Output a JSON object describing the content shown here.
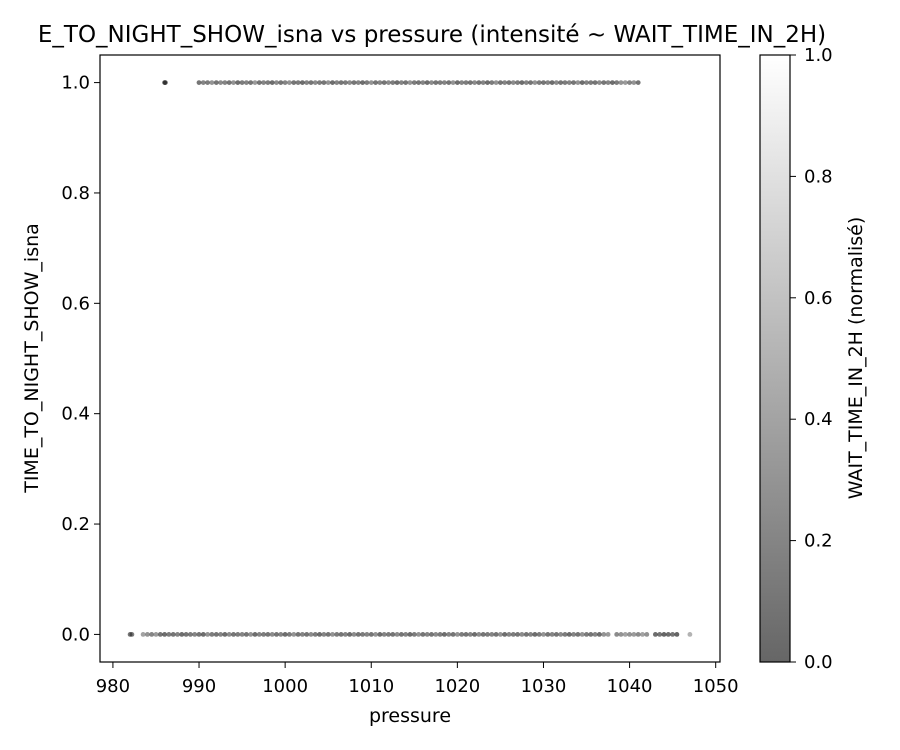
{
  "chart_data": {
    "type": "scatter",
    "title": "E_TO_NIGHT_SHOW_isna vs pressure (intensité ~ WAIT_TIME_IN_2H)",
    "xlabel": "pressure",
    "ylabel": "TIME_TO_NIGHT_SHOW_isna",
    "xlim": [
      978.5,
      1050.5
    ],
    "ylim": [
      -0.05,
      1.05
    ],
    "xticks": [
      "980",
      "990",
      "1000",
      "1010",
      "1020",
      "1030",
      "1040",
      "1050"
    ],
    "yticks": [
      "0.0",
      "0.2",
      "0.4",
      "0.6",
      "0.8",
      "1.0"
    ],
    "grid": false,
    "colorbar": {
      "label": "WAIT_TIME_IN_2H (normalisé)",
      "range": [
        0,
        1
      ],
      "ticks": [
        "0.0",
        "0.2",
        "0.4",
        "0.6",
        "0.8",
        "1.0"
      ],
      "colormap": "gray",
      "alpha": 0.6
    },
    "series": [
      {
        "y": 1,
        "x": [
          986.0,
          986.1,
          990.0,
          990.5,
          991.0,
          991.5,
          992.0,
          992.5,
          993.0,
          993.5,
          994.0,
          994.5,
          995.0,
          995.5,
          996.0,
          996.5,
          997.0,
          997.5,
          998.0,
          998.5,
          999.0,
          999.5,
          1000.0,
          1000.5,
          1001.0,
          1001.5,
          1002.0,
          1002.5,
          1003.0,
          1003.5,
          1004.0,
          1004.5,
          1005.0,
          1005.5,
          1006.0,
          1006.5,
          1007.0,
          1007.5,
          1008.0,
          1008.5,
          1009.0,
          1009.5,
          1010.0,
          1010.5,
          1011.0,
          1011.5,
          1012.0,
          1012.5,
          1013.0,
          1013.5,
          1014.0,
          1014.5,
          1015.0,
          1015.5,
          1016.0,
          1016.5,
          1017.0,
          1017.5,
          1018.0,
          1018.5,
          1019.0,
          1019.5,
          1020.0,
          1020.5,
          1021.0,
          1021.5,
          1022.0,
          1022.5,
          1023.0,
          1023.5,
          1024.0,
          1024.5,
          1025.0,
          1025.5,
          1026.0,
          1026.5,
          1027.0,
          1027.5,
          1028.0,
          1028.5,
          1029.0,
          1029.5,
          1030.0,
          1030.5,
          1031.0,
          1031.5,
          1032.0,
          1032.5,
          1033.0,
          1033.5,
          1034.0,
          1034.5,
          1035.0,
          1035.5,
          1036.0,
          1036.5,
          1037.0,
          1037.5,
          1038.0,
          1038.5,
          1039.0,
          1039.5,
          1040.0,
          1040.5,
          1041.0
        ],
        "c": [
          0.0,
          0.05,
          0.1,
          0.2,
          0.15,
          0.3,
          0.1,
          0.25,
          0.2,
          0.1,
          0.3,
          0.05,
          0.15,
          0.2,
          0.1,
          0.35,
          0.1,
          0.2,
          0.15,
          0.05,
          0.25,
          0.1,
          0.2,
          0.3,
          0.1,
          0.15,
          0.05,
          0.2,
          0.1,
          0.25,
          0.15,
          0.1,
          0.3,
          0.05,
          0.2,
          0.1,
          0.15,
          0.25,
          0.1,
          0.2,
          0.05,
          0.15,
          0.3,
          0.1,
          0.2,
          0.1,
          0.25,
          0.15,
          0.05,
          0.2,
          0.1,
          0.3,
          0.15,
          0.1,
          0.2,
          0.05,
          0.25,
          0.1,
          0.15,
          0.2,
          0.1,
          0.3,
          0.05,
          0.2,
          0.15,
          0.1,
          0.25,
          0.1,
          0.2,
          0.05,
          0.15,
          0.3,
          0.1,
          0.2,
          0.1,
          0.25,
          0.15,
          0.05,
          0.2,
          0.1,
          0.3,
          0.15,
          0.1,
          0.2,
          0.05,
          0.25,
          0.1,
          0.15,
          0.2,
          0.1,
          0.3,
          0.05,
          0.2,
          0.15,
          0.1,
          0.25,
          0.1,
          0.2,
          0.05,
          0.15,
          0.3,
          0.35,
          0.2,
          0.3,
          0.1
        ]
      },
      {
        "y": 0,
        "x": [
          982.0,
          982.2,
          983.5,
          984.0,
          984.5,
          985.0,
          985.5,
          986.0,
          986.5,
          987.0,
          987.5,
          988.0,
          988.5,
          989.0,
          989.5,
          990.0,
          990.5,
          991.0,
          991.5,
          992.0,
          992.5,
          993.0,
          993.5,
          994.0,
          994.5,
          995.0,
          995.5,
          996.0,
          996.5,
          997.0,
          997.5,
          998.0,
          998.5,
          999.0,
          999.5,
          1000.0,
          1000.5,
          1001.0,
          1001.5,
          1002.0,
          1002.5,
          1003.0,
          1003.5,
          1004.0,
          1004.5,
          1005.0,
          1005.5,
          1006.0,
          1006.5,
          1007.0,
          1007.5,
          1008.0,
          1008.5,
          1009.0,
          1009.5,
          1010.0,
          1010.5,
          1011.0,
          1011.5,
          1012.0,
          1012.5,
          1013.0,
          1013.5,
          1014.0,
          1014.5,
          1015.0,
          1015.5,
          1016.0,
          1016.5,
          1017.0,
          1017.5,
          1018.0,
          1018.5,
          1019.0,
          1019.5,
          1020.0,
          1020.5,
          1021.0,
          1021.5,
          1022.0,
          1022.5,
          1023.0,
          1023.5,
          1024.0,
          1024.5,
          1025.0,
          1025.5,
          1026.0,
          1026.5,
          1027.0,
          1027.5,
          1028.0,
          1028.5,
          1029.0,
          1029.5,
          1030.0,
          1030.5,
          1031.0,
          1031.5,
          1032.0,
          1032.5,
          1033.0,
          1033.5,
          1034.0,
          1034.5,
          1035.0,
          1035.5,
          1036.0,
          1036.5,
          1037.0,
          1037.5,
          1038.5,
          1039.0,
          1039.5,
          1040.0,
          1040.5,
          1041.0,
          1041.5,
          1042.0,
          1043.0,
          1043.5,
          1044.0,
          1044.5,
          1045.0,
          1045.5,
          1047.0
        ],
        "c": [
          0.1,
          0.15,
          0.4,
          0.3,
          0.2,
          0.35,
          0.1,
          0.05,
          0.15,
          0.1,
          0.2,
          0.05,
          0.1,
          0.15,
          0.2,
          0.1,
          0.05,
          0.3,
          0.15,
          0.1,
          0.2,
          0.05,
          0.25,
          0.1,
          0.15,
          0.2,
          0.1,
          0.3,
          0.05,
          0.2,
          0.15,
          0.1,
          0.25,
          0.1,
          0.2,
          0.05,
          0.15,
          0.3,
          0.1,
          0.2,
          0.1,
          0.25,
          0.15,
          0.05,
          0.2,
          0.1,
          0.3,
          0.15,
          0.1,
          0.2,
          0.05,
          0.25,
          0.1,
          0.15,
          0.2,
          0.1,
          0.3,
          0.05,
          0.2,
          0.15,
          0.1,
          0.25,
          0.1,
          0.2,
          0.05,
          0.15,
          0.3,
          0.1,
          0.2,
          0.1,
          0.25,
          0.15,
          0.05,
          0.2,
          0.1,
          0.3,
          0.15,
          0.1,
          0.2,
          0.05,
          0.25,
          0.1,
          0.15,
          0.2,
          0.1,
          0.3,
          0.05,
          0.2,
          0.15,
          0.1,
          0.25,
          0.1,
          0.2,
          0.05,
          0.15,
          0.3,
          0.1,
          0.2,
          0.1,
          0.25,
          0.15,
          0.05,
          0.2,
          0.1,
          0.3,
          0.15,
          0.1,
          0.2,
          0.05,
          0.3,
          0.35,
          0.25,
          0.3,
          0.4,
          0.3,
          0.35,
          0.25,
          0.4,
          0.3,
          0.05,
          0.1,
          0.0,
          0.05,
          0.1,
          0.0,
          0.5
        ]
      }
    ]
  }
}
